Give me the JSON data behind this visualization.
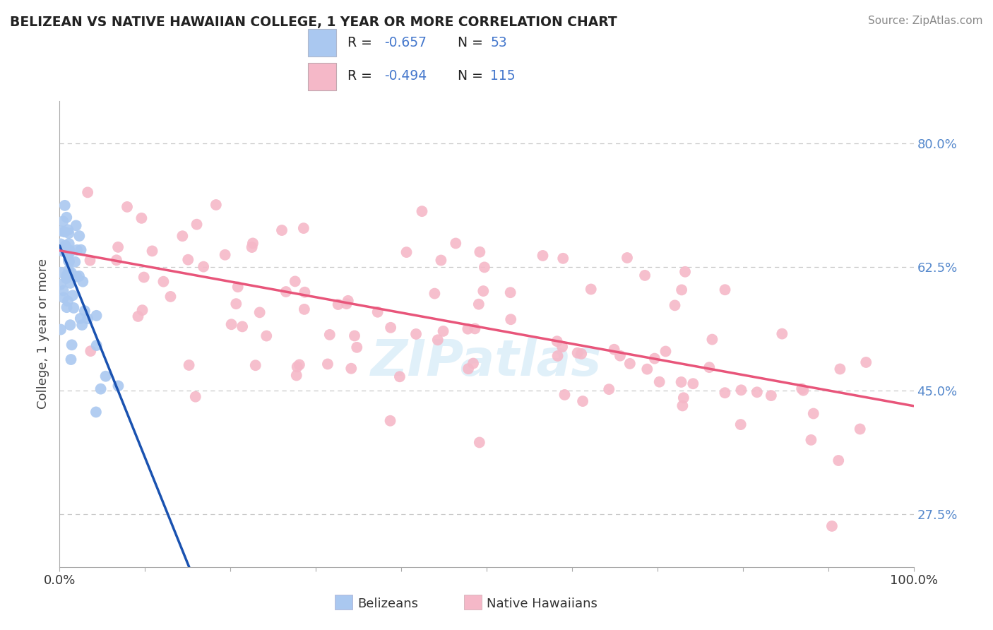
{
  "title": "BELIZEAN VS NATIVE HAWAIIAN COLLEGE, 1 YEAR OR MORE CORRELATION CHART",
  "source_text": "Source: ZipAtlas.com",
  "ylabel": "College, 1 year or more",
  "ytick_values": [
    0.275,
    0.45,
    0.625,
    0.8
  ],
  "legend_entries": [
    {
      "label": "Belizeans",
      "R": -0.657,
      "N": 53,
      "color": "#aac8f0",
      "line_color": "#1a52b0"
    },
    {
      "label": "Native Hawaiians",
      "R": -0.494,
      "N": 115,
      "color": "#f5b8c8",
      "line_color": "#e8557a"
    }
  ],
  "watermark": "ZIPatlas",
  "background_color": "#ffffff",
  "grid_color": "#c8c8c8",
  "xlim": [
    0.0,
    1.0
  ],
  "ylim": [
    0.2,
    0.86
  ],
  "bel_trend_x0": 0.0,
  "bel_trend_y0": 0.655,
  "bel_trend_x1": 0.155,
  "bel_trend_y1": 0.19,
  "nat_trend_x0": 0.0,
  "nat_trend_y0": 0.648,
  "nat_trend_x1": 1.0,
  "nat_trend_y1": 0.428
}
